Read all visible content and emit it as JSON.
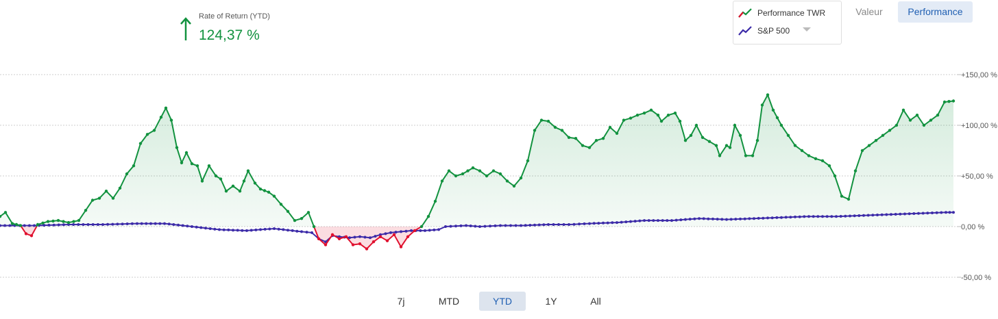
{
  "header": {
    "ror_label": "Rate of Return (YTD)",
    "ror_value": "124,37 %"
  },
  "legend": {
    "items": [
      {
        "label": "Performance TWR",
        "icon": "line-chart-icon",
        "color": "#12923f"
      },
      {
        "label": "S&P 500",
        "icon": "line-chart-icon",
        "color": "#3c2ba8"
      }
    ]
  },
  "mode_buttons": {
    "valeur": "Valeur",
    "performance": "Performance",
    "active": "performance"
  },
  "range_buttons": {
    "items": [
      "7j",
      "MTD",
      "YTD",
      "1Y",
      "All"
    ],
    "active": "YTD"
  },
  "colors": {
    "positive": "#12923f",
    "negative": "#e0102e",
    "benchmark": "#3c2ba8",
    "grid": "#cccccc"
  },
  "chart_data": {
    "type": "line",
    "ylim": [
      -50,
      150
    ],
    "y_ticks": [
      "+150,00 %",
      "+100,00 %",
      "+50,00 %",
      "0,00 %",
      "-50,00 %"
    ],
    "y_tick_values": [
      150,
      100,
      50,
      0,
      -50
    ],
    "grid": true,
    "legend_position": "top-right",
    "series": [
      {
        "name": "Performance TWR",
        "anchors": [
          [
            0,
            10
          ],
          [
            8,
            14
          ],
          [
            18,
            3
          ],
          [
            30,
            1
          ],
          [
            38,
            -7
          ],
          [
            46,
            -9
          ],
          [
            55,
            2
          ],
          [
            70,
            5
          ],
          [
            85,
            6
          ],
          [
            100,
            4
          ],
          [
            115,
            6
          ],
          [
            125,
            16
          ],
          [
            135,
            26
          ],
          [
            145,
            28
          ],
          [
            155,
            35
          ],
          [
            165,
            28
          ],
          [
            175,
            38
          ],
          [
            185,
            52
          ],
          [
            195,
            60
          ],
          [
            205,
            82
          ],
          [
            215,
            91
          ],
          [
            225,
            95
          ],
          [
            235,
            108
          ],
          [
            242,
            117
          ],
          [
            250,
            105
          ],
          [
            258,
            78
          ],
          [
            265,
            63
          ],
          [
            272,
            73
          ],
          [
            280,
            62
          ],
          [
            288,
            60
          ],
          [
            295,
            45
          ],
          [
            305,
            60
          ],
          [
            315,
            50
          ],
          [
            322,
            47
          ],
          [
            330,
            35
          ],
          [
            340,
            40
          ],
          [
            350,
            35
          ],
          [
            362,
            55
          ],
          [
            372,
            43
          ],
          [
            380,
            37
          ],
          [
            392,
            34
          ],
          [
            400,
            30
          ],
          [
            410,
            22
          ],
          [
            420,
            15
          ],
          [
            430,
            6
          ],
          [
            440,
            8
          ],
          [
            450,
            14
          ],
          [
            458,
            0
          ],
          [
            465,
            -12
          ],
          [
            475,
            -18
          ],
          [
            485,
            -8
          ],
          [
            495,
            -12
          ],
          [
            505,
            -10
          ],
          [
            515,
            -18
          ],
          [
            525,
            -17
          ],
          [
            535,
            -22
          ],
          [
            545,
            -15
          ],
          [
            555,
            -10
          ],
          [
            565,
            -14
          ],
          [
            575,
            -8
          ],
          [
            585,
            -20
          ],
          [
            595,
            -10
          ],
          [
            605,
            -4
          ],
          [
            615,
            0
          ],
          [
            625,
            10
          ],
          [
            635,
            25
          ],
          [
            645,
            45
          ],
          [
            655,
            55
          ],
          [
            665,
            50
          ],
          [
            675,
            52
          ],
          [
            690,
            58
          ],
          [
            700,
            55
          ],
          [
            710,
            50
          ],
          [
            720,
            55
          ],
          [
            730,
            52
          ],
          [
            740,
            45
          ],
          [
            750,
            40
          ],
          [
            760,
            48
          ],
          [
            770,
            65
          ],
          [
            780,
            95
          ],
          [
            790,
            105
          ],
          [
            800,
            104
          ],
          [
            810,
            98
          ],
          [
            820,
            95
          ],
          [
            830,
            88
          ],
          [
            840,
            87
          ],
          [
            850,
            80
          ],
          [
            860,
            78
          ],
          [
            870,
            85
          ],
          [
            880,
            87
          ],
          [
            890,
            98
          ],
          [
            900,
            92
          ],
          [
            910,
            105
          ],
          [
            920,
            107
          ],
          [
            930,
            110
          ],
          [
            940,
            112
          ],
          [
            950,
            115
          ],
          [
            960,
            110
          ],
          [
            965,
            104
          ],
          [
            975,
            110
          ],
          [
            985,
            112
          ],
          [
            992,
            104
          ],
          [
            1000,
            85
          ],
          [
            1008,
            90
          ],
          [
            1016,
            100
          ],
          [
            1025,
            88
          ],
          [
            1035,
            84
          ],
          [
            1045,
            80
          ],
          [
            1050,
            70
          ],
          [
            1060,
            80
          ],
          [
            1065,
            78
          ],
          [
            1072,
            100
          ],
          [
            1080,
            90
          ],
          [
            1088,
            70
          ],
          [
            1098,
            70
          ],
          [
            1105,
            85
          ],
          [
            1112,
            120
          ],
          [
            1120,
            130
          ],
          [
            1128,
            115
          ],
          [
            1140,
            100
          ],
          [
            1150,
            90
          ],
          [
            1160,
            80
          ],
          [
            1170,
            75
          ],
          [
            1180,
            70
          ],
          [
            1190,
            67
          ],
          [
            1200,
            65
          ],
          [
            1210,
            60
          ],
          [
            1218,
            50
          ],
          [
            1228,
            30
          ],
          [
            1238,
            27
          ],
          [
            1248,
            55
          ],
          [
            1258,
            75
          ],
          [
            1268,
            80
          ],
          [
            1278,
            85
          ],
          [
            1288,
            90
          ],
          [
            1298,
            95
          ],
          [
            1308,
            100
          ],
          [
            1318,
            115
          ],
          [
            1328,
            105
          ],
          [
            1338,
            110
          ],
          [
            1348,
            100
          ],
          [
            1358,
            105
          ],
          [
            1368,
            110
          ],
          [
            1378,
            123
          ],
          [
            1391,
            124
          ]
        ]
      },
      {
        "name": "S&P 500",
        "anchors": [
          [
            0,
            1
          ],
          [
            50,
            1
          ],
          [
            100,
            2
          ],
          [
            150,
            2
          ],
          [
            200,
            3
          ],
          [
            240,
            3
          ],
          [
            280,
            0
          ],
          [
            320,
            -3
          ],
          [
            360,
            -4
          ],
          [
            400,
            -2
          ],
          [
            440,
            -5
          ],
          [
            455,
            -6
          ],
          [
            465,
            -12
          ],
          [
            475,
            -15
          ],
          [
            485,
            -9
          ],
          [
            495,
            -10
          ],
          [
            510,
            -11
          ],
          [
            525,
            -10
          ],
          [
            540,
            -11
          ],
          [
            555,
            -8
          ],
          [
            570,
            -6
          ],
          [
            585,
            -5
          ],
          [
            600,
            -4
          ],
          [
            620,
            -4
          ],
          [
            640,
            -3
          ],
          [
            650,
            0
          ],
          [
            680,
            1
          ],
          [
            700,
            0
          ],
          [
            730,
            1
          ],
          [
            760,
            1
          ],
          [
            800,
            2
          ],
          [
            830,
            2
          ],
          [
            860,
            3
          ],
          [
            900,
            4
          ],
          [
            940,
            6
          ],
          [
            980,
            6
          ],
          [
            1020,
            8
          ],
          [
            1060,
            7
          ],
          [
            1100,
            8
          ],
          [
            1140,
            9
          ],
          [
            1180,
            10
          ],
          [
            1220,
            10
          ],
          [
            1260,
            11
          ],
          [
            1300,
            12
          ],
          [
            1340,
            13
          ],
          [
            1380,
            14
          ],
          [
            1391,
            14
          ]
        ]
      }
    ]
  }
}
